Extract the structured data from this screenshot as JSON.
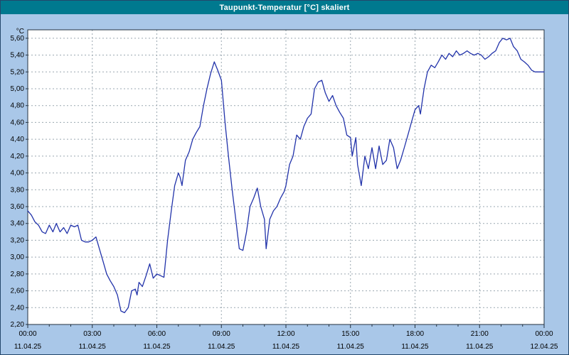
{
  "window": {
    "title": "Taupunkt-Temperatur [°C] skaliert"
  },
  "colors": {
    "titlebar_bg": "#00798f",
    "window_bg": "#a9c7e8",
    "plot_bg": "#ffffff",
    "grid": "#9aa7b0",
    "axis": "#22313f",
    "line": "#2233aa"
  },
  "chart_data": {
    "type": "line",
    "title": "Taupunkt-Temperatur [°C] skaliert",
    "unit_label": "°C",
    "ylim": [
      2.2,
      5.7
    ],
    "y_tick_min": 2.2,
    "y_tick_step": 0.2,
    "y_tick_labels": [
      "2,20",
      "2,40",
      "2,60",
      "2,80",
      "3,00",
      "3,20",
      "3,40",
      "3,60",
      "3,80",
      "4,00",
      "4,20",
      "4,40",
      "4,60",
      "4,80",
      "5,00",
      "5,20",
      "5,40",
      "5,60"
    ],
    "xlim_hours": [
      0,
      24
    ],
    "x_tick_step_hours": 3,
    "x_ticks": [
      {
        "time": "00:00",
        "date": "11.04.25"
      },
      {
        "time": "03:00",
        "date": "11.04.25"
      },
      {
        "time": "06:00",
        "date": "11.04.25"
      },
      {
        "time": "09:00",
        "date": "11.04.25"
      },
      {
        "time": "12:00",
        "date": "11.04.25"
      },
      {
        "time": "15:00",
        "date": "11.04.25"
      },
      {
        "time": "18:00",
        "date": "11.04.25"
      },
      {
        "time": "21:00",
        "date": "11.04.25"
      },
      {
        "time": "00:00",
        "date": "12.04.25"
      }
    ],
    "grid": true,
    "legend": "none",
    "series_name": "Taupunkt-Temperatur",
    "points": [
      [
        0.0,
        3.55
      ],
      [
        0.17,
        3.5
      ],
      [
        0.33,
        3.42
      ],
      [
        0.5,
        3.38
      ],
      [
        0.67,
        3.3
      ],
      [
        0.83,
        3.28
      ],
      [
        1.0,
        3.38
      ],
      [
        1.17,
        3.3
      ],
      [
        1.33,
        3.4
      ],
      [
        1.5,
        3.3
      ],
      [
        1.67,
        3.35
      ],
      [
        1.83,
        3.28
      ],
      [
        2.0,
        3.38
      ],
      [
        2.17,
        3.36
      ],
      [
        2.33,
        3.38
      ],
      [
        2.5,
        3.2
      ],
      [
        2.67,
        3.18
      ],
      [
        2.83,
        3.18
      ],
      [
        3.0,
        3.2
      ],
      [
        3.17,
        3.24
      ],
      [
        3.33,
        3.1
      ],
      [
        3.5,
        2.95
      ],
      [
        3.67,
        2.8
      ],
      [
        3.83,
        2.72
      ],
      [
        4.0,
        2.65
      ],
      [
        4.17,
        2.55
      ],
      [
        4.33,
        2.36
      ],
      [
        4.5,
        2.34
      ],
      [
        4.67,
        2.4
      ],
      [
        4.83,
        2.6
      ],
      [
        5.0,
        2.62
      ],
      [
        5.08,
        2.55
      ],
      [
        5.17,
        2.7
      ],
      [
        5.33,
        2.65
      ],
      [
        5.5,
        2.78
      ],
      [
        5.67,
        2.92
      ],
      [
        5.83,
        2.75
      ],
      [
        6.0,
        2.8
      ],
      [
        6.17,
        2.78
      ],
      [
        6.33,
        2.76
      ],
      [
        6.5,
        3.2
      ],
      [
        6.67,
        3.55
      ],
      [
        6.83,
        3.85
      ],
      [
        7.0,
        4.0
      ],
      [
        7.08,
        3.95
      ],
      [
        7.17,
        3.85
      ],
      [
        7.33,
        4.15
      ],
      [
        7.5,
        4.25
      ],
      [
        7.67,
        4.4
      ],
      [
        7.83,
        4.48
      ],
      [
        8.0,
        4.55
      ],
      [
        8.17,
        4.8
      ],
      [
        8.33,
        5.0
      ],
      [
        8.5,
        5.18
      ],
      [
        8.67,
        5.32
      ],
      [
        8.83,
        5.22
      ],
      [
        9.0,
        5.1
      ],
      [
        9.17,
        4.6
      ],
      [
        9.33,
        4.2
      ],
      [
        9.5,
        3.8
      ],
      [
        9.67,
        3.45
      ],
      [
        9.83,
        3.1
      ],
      [
        10.0,
        3.08
      ],
      [
        10.17,
        3.3
      ],
      [
        10.33,
        3.6
      ],
      [
        10.5,
        3.7
      ],
      [
        10.67,
        3.82
      ],
      [
        10.83,
        3.6
      ],
      [
        11.0,
        3.45
      ],
      [
        11.08,
        3.1
      ],
      [
        11.25,
        3.45
      ],
      [
        11.42,
        3.55
      ],
      [
        11.58,
        3.6
      ],
      [
        11.75,
        3.7
      ],
      [
        11.92,
        3.78
      ],
      [
        12.0,
        3.85
      ],
      [
        12.17,
        4.1
      ],
      [
        12.33,
        4.2
      ],
      [
        12.5,
        4.45
      ],
      [
        12.67,
        4.4
      ],
      [
        12.83,
        4.55
      ],
      [
        13.0,
        4.65
      ],
      [
        13.17,
        4.7
      ],
      [
        13.33,
        5.0
      ],
      [
        13.5,
        5.08
      ],
      [
        13.67,
        5.1
      ],
      [
        13.83,
        4.95
      ],
      [
        14.0,
        4.85
      ],
      [
        14.17,
        4.92
      ],
      [
        14.33,
        4.8
      ],
      [
        14.5,
        4.72
      ],
      [
        14.67,
        4.65
      ],
      [
        14.83,
        4.45
      ],
      [
        15.0,
        4.42
      ],
      [
        15.08,
        4.2
      ],
      [
        15.25,
        4.42
      ],
      [
        15.33,
        4.1
      ],
      [
        15.5,
        3.85
      ],
      [
        15.67,
        4.2
      ],
      [
        15.83,
        4.05
      ],
      [
        16.0,
        4.3
      ],
      [
        16.17,
        4.05
      ],
      [
        16.33,
        4.32
      ],
      [
        16.5,
        4.1
      ],
      [
        16.67,
        4.15
      ],
      [
        16.83,
        4.4
      ],
      [
        17.0,
        4.3
      ],
      [
        17.17,
        4.05
      ],
      [
        17.33,
        4.15
      ],
      [
        17.5,
        4.3
      ],
      [
        17.67,
        4.45
      ],
      [
        17.83,
        4.6
      ],
      [
        18.0,
        4.75
      ],
      [
        18.17,
        4.8
      ],
      [
        18.25,
        4.7
      ],
      [
        18.42,
        5.0
      ],
      [
        18.58,
        5.2
      ],
      [
        18.75,
        5.28
      ],
      [
        18.92,
        5.25
      ],
      [
        19.08,
        5.32
      ],
      [
        19.25,
        5.4
      ],
      [
        19.42,
        5.35
      ],
      [
        19.58,
        5.42
      ],
      [
        19.75,
        5.38
      ],
      [
        19.92,
        5.45
      ],
      [
        20.08,
        5.4
      ],
      [
        20.25,
        5.42
      ],
      [
        20.42,
        5.45
      ],
      [
        20.58,
        5.42
      ],
      [
        20.75,
        5.4
      ],
      [
        20.92,
        5.42
      ],
      [
        21.08,
        5.4
      ],
      [
        21.25,
        5.35
      ],
      [
        21.42,
        5.38
      ],
      [
        21.58,
        5.42
      ],
      [
        21.75,
        5.45
      ],
      [
        21.92,
        5.55
      ],
      [
        22.08,
        5.6
      ],
      [
        22.25,
        5.58
      ],
      [
        22.42,
        5.6
      ],
      [
        22.58,
        5.5
      ],
      [
        22.75,
        5.45
      ],
      [
        22.92,
        5.35
      ],
      [
        23.08,
        5.32
      ],
      [
        23.25,
        5.28
      ],
      [
        23.42,
        5.22
      ],
      [
        23.58,
        5.2
      ],
      [
        23.75,
        5.2
      ],
      [
        24.0,
        5.2
      ]
    ]
  }
}
